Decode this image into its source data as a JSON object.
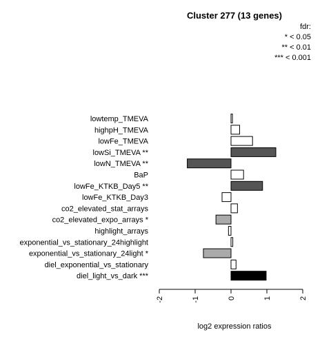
{
  "chart_data": {
    "type": "bar",
    "orientation": "horizontal",
    "title": "Cluster 277 (13 genes)",
    "xlabel": "log2 expression ratios",
    "ylabel": "",
    "xlim": [
      -2,
      2
    ],
    "xticks": [
      "-2",
      "-1",
      "0",
      "1",
      "2"
    ],
    "grid": false,
    "legend_position": "top-right",
    "legend": [
      "fdr:",
      "* < 0.05",
      "** < 0.01",
      "*** < 0.001"
    ],
    "categories": [
      "lowtemp_TMEVA",
      "highpH_TMEVA",
      "lowFe_TMEVA",
      "lowSi_TMEVA **",
      "lowN_TMEVA **",
      "BaP",
      "lowFe_KTKB_Day5 **",
      "lowFe_KTKB_Day3",
      "co2_elevated_stat_arrays",
      "co2_elevated_expo_arrays *",
      "highlight_arrays",
      "exponential_vs_stationary_24highlight",
      "exponential_vs_stationary_24light *",
      "diel_exponential_vs_stationary",
      "diel_light_vs_dark ***"
    ],
    "values": [
      0.04,
      0.24,
      0.6,
      1.25,
      -1.22,
      0.35,
      0.88,
      -0.25,
      0.18,
      -0.42,
      -0.07,
      0.05,
      -0.77,
      0.14,
      0.98
    ],
    "colors": [
      "#ffffff",
      "#ffffff",
      "#ffffff",
      "#555555",
      "#555555",
      "#ffffff",
      "#555555",
      "#ffffff",
      "#ffffff",
      "#aaaaaa",
      "#ffffff",
      "#ffffff",
      "#aaaaaa",
      "#ffffff",
      "#000000"
    ]
  }
}
